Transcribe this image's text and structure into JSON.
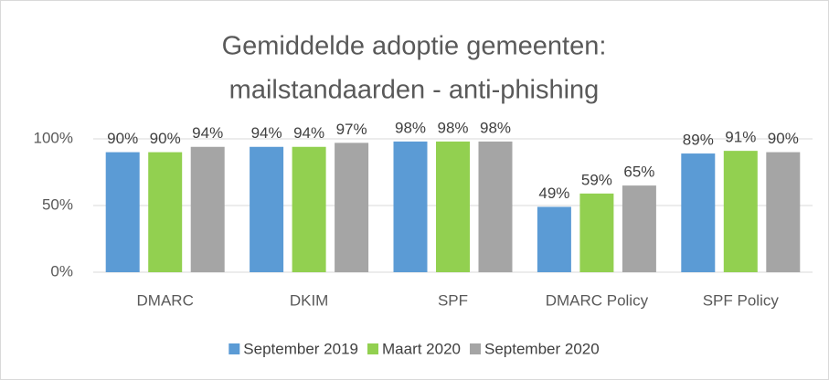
{
  "chart_data": {
    "type": "bar",
    "title": [
      "Gemiddelde adoptie gemeenten:",
      "mailstandaarden - anti-phishing"
    ],
    "categories": [
      "DMARC",
      "DKIM",
      "SPF",
      "DMARC Policy",
      "SPF Policy"
    ],
    "series": [
      {
        "name": "September 2019",
        "color": "#5b9bd5",
        "values": [
          90,
          94,
          98,
          49,
          89
        ],
        "value_labels": [
          "90%",
          "94%",
          "98%",
          "49%",
          "89%"
        ]
      },
      {
        "name": "Maart 2020",
        "color": "#92d050",
        "values": [
          90,
          94,
          98,
          59,
          91
        ],
        "value_labels": [
          "90%",
          "94%",
          "98%",
          "59%",
          "91%"
        ]
      },
      {
        "name": "September 2020",
        "color": "#a5a5a5",
        "values": [
          94,
          97,
          98,
          65,
          90
        ],
        "value_labels": [
          "94%",
          "97%",
          "98%",
          "65%",
          "90%"
        ]
      }
    ],
    "ylim": [
      0,
      100
    ],
    "yticks": [
      {
        "value": 0,
        "label": "0%"
      },
      {
        "value": 50,
        "label": "50%"
      },
      {
        "value": 100,
        "label": "100%"
      }
    ],
    "grid": true,
    "legend": "bottom"
  }
}
